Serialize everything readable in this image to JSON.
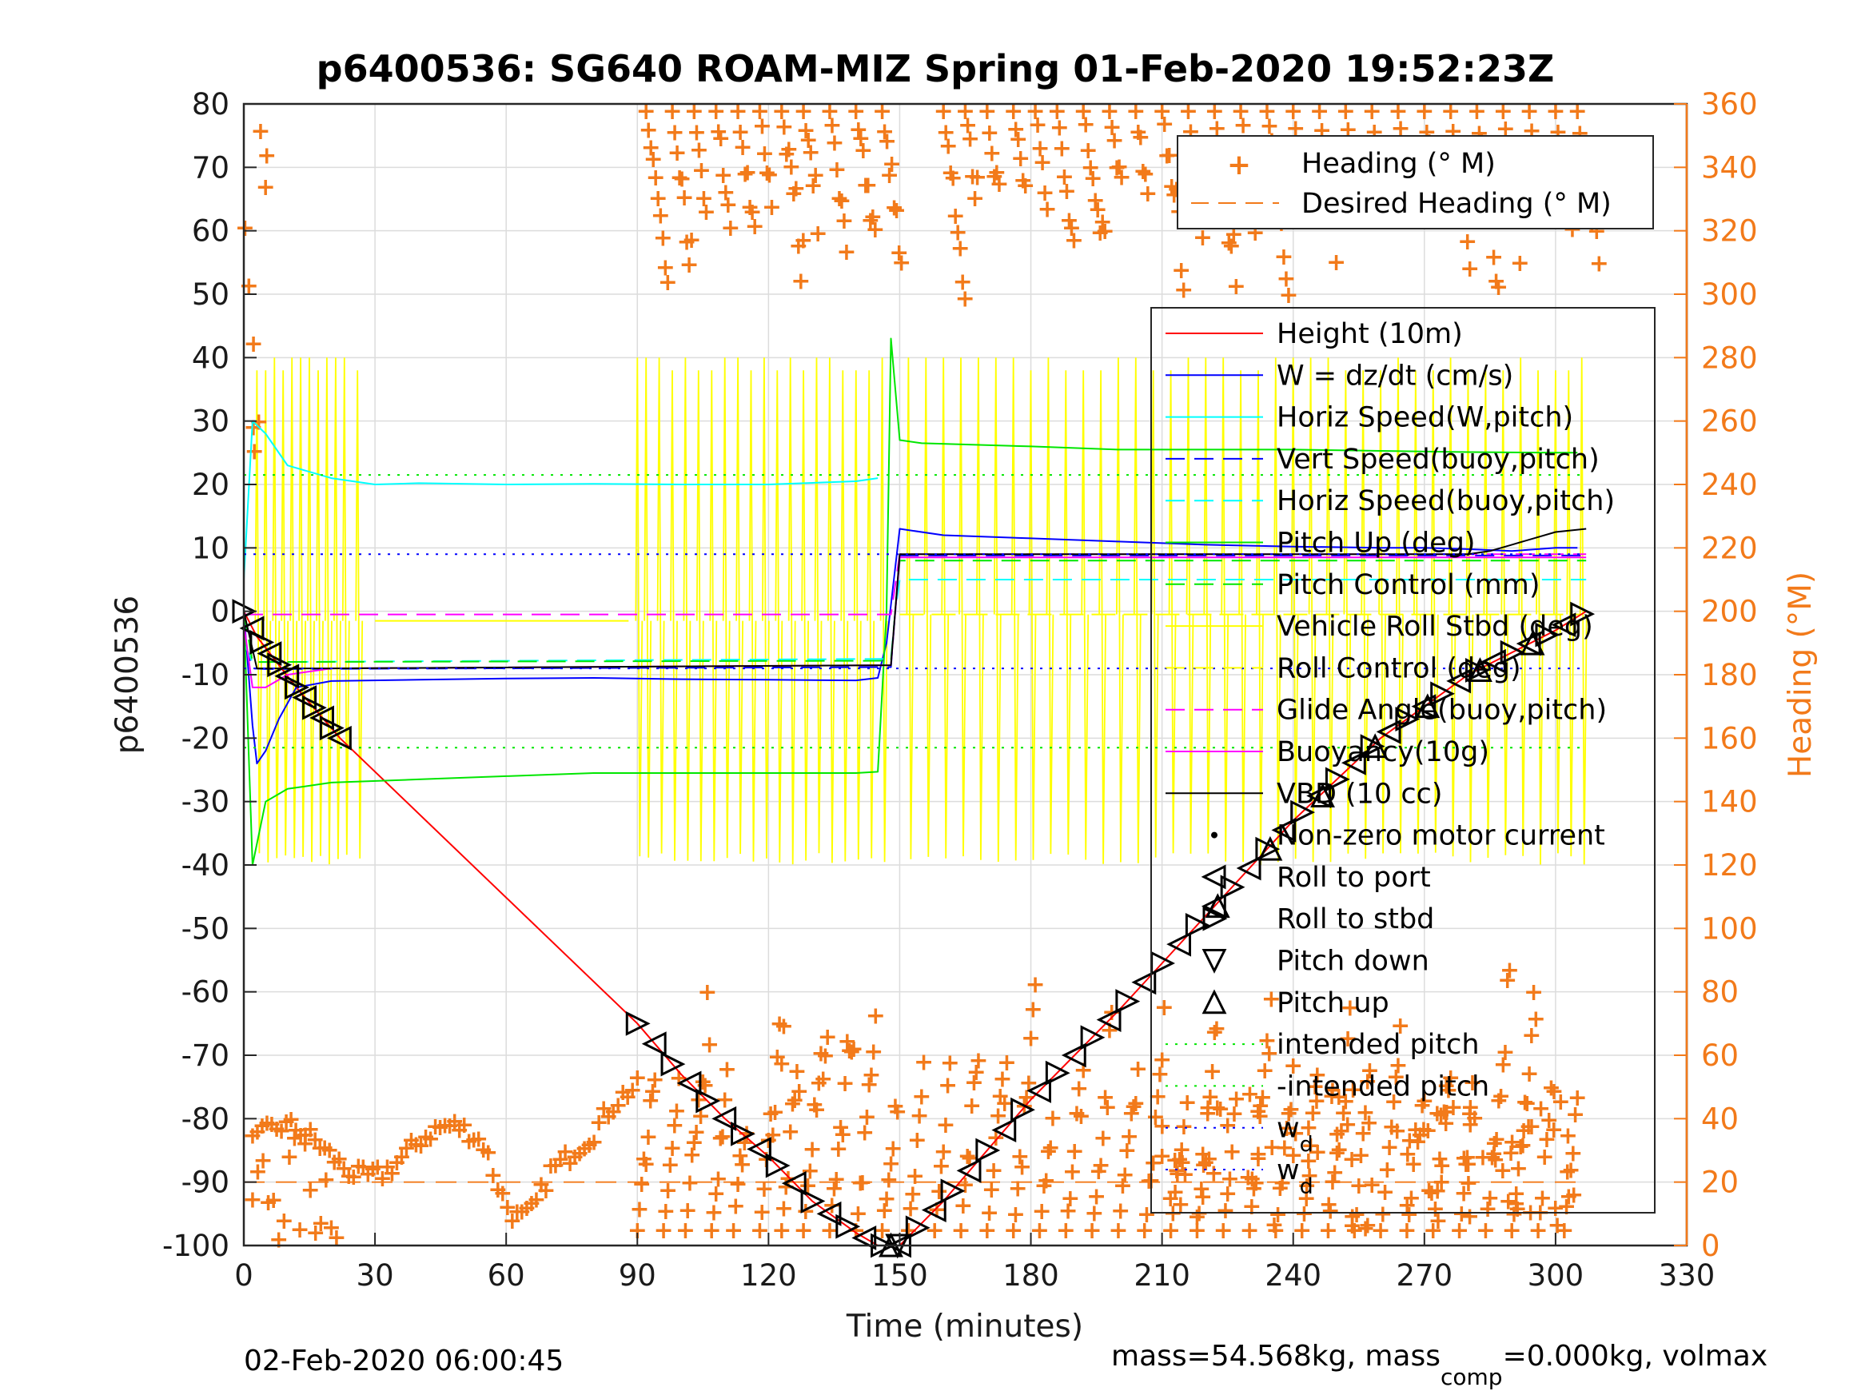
{
  "chart_data": {
    "type": "line",
    "title": "p6400536: SG640 ROAM-MIZ Spring 01-Feb-2020 19:52:23Z",
    "xlabel": "Time (minutes)",
    "ylabel": "p6400536",
    "ylabel_right": "Heading (°M)",
    "xlim": [
      0,
      330
    ],
    "ylim": [
      -100,
      80
    ],
    "ylim_right": [
      0,
      360
    ],
    "xticks": [
      0,
      30,
      60,
      90,
      120,
      150,
      180,
      210,
      240,
      270,
      300,
      330
    ],
    "yticks": [
      -100,
      -90,
      -80,
      -70,
      -60,
      -50,
      -40,
      -30,
      -20,
      -10,
      0,
      10,
      20,
      30,
      40,
      50,
      60,
      70,
      80
    ],
    "yticks_right": [
      0,
      20,
      40,
      60,
      80,
      100,
      120,
      140,
      160,
      180,
      200,
      220,
      240,
      260,
      280,
      300,
      320,
      340,
      360
    ],
    "grid": true,
    "legend_heading": {
      "placement": "top-right",
      "entries": [
        "Heading (° M)",
        "Desired Heading (° M)"
      ]
    },
    "legend_main": {
      "placement": "right",
      "entries": [
        "Height (10m)",
        "W = dz/dt (cm/s)",
        "Horiz Speed(W,pitch)",
        "Vert Speed(buoy,pitch)",
        "Horiz Speed(buoy,pitch)",
        "Pitch Up (deg)",
        "Pitch Control (mm)",
        "Vehicle Roll Stbd (deg)",
        "Roll Control (deg)",
        "Glide Angle(buoy,pitch)",
        "Buoyancy(10g)",
        "VBD (10 cc)",
        "Non-zero motor current",
        "Roll to port",
        "Roll to stbd",
        "Pitch down",
        "Pitch up",
        "intended pitch",
        "-intended pitch",
        "w",
        "w"
      ],
      "subscript": "d"
    },
    "colors": {
      "heading": "#f27a1a",
      "height": "#ff0000",
      "w": "#0000ff",
      "horiz_speed": "#00ffff",
      "pitch": "#00e600",
      "roll": "#ffff00",
      "glide": "#ff00ff",
      "vbd": "#000000"
    },
    "series": [
      {
        "name": "Height (10m)",
        "x": [
          0,
          3,
          12,
          22,
          90,
          100,
          110,
          120,
          130,
          140,
          145,
          148,
          150,
          160,
          180,
          200,
          220,
          240,
          260,
          280,
          300,
          307
        ],
        "y": [
          0,
          -4,
          -12,
          -20,
          -65,
          -73,
          -80,
          -86,
          -93,
          -98,
          -100,
          -100,
          -100,
          -93,
          -77,
          -63,
          -48,
          -33,
          -20,
          -10,
          -3,
          0
        ]
      },
      {
        "name": "W = dz/dt (cm/s)",
        "x": [
          0,
          2,
          3,
          5,
          8,
          12,
          20,
          40,
          60,
          80,
          100,
          120,
          140,
          145,
          147,
          150,
          160,
          180,
          200,
          220,
          240,
          260,
          270,
          280,
          290,
          300,
          305
        ],
        "y": [
          0,
          -18,
          -24,
          -22,
          -17,
          -12,
          -11,
          -10.8,
          -10.6,
          -10.5,
          -10.7,
          -10.8,
          -10.9,
          -10.5,
          -5,
          13,
          12,
          11.5,
          11,
          10.5,
          10.2,
          10,
          10,
          9.8,
          9.5,
          10,
          10
        ]
      },
      {
        "name": "Horiz Speed(W,pitch)",
        "x": [
          0,
          2,
          5,
          10,
          20,
          30,
          40,
          60,
          80,
          100,
          120,
          140,
          145
        ],
        "y": [
          5,
          30,
          28,
          23,
          21,
          20,
          20.2,
          20,
          20.1,
          20,
          20,
          20.5,
          21
        ]
      },
      {
        "name": "Vert Speed(buoy,pitch)",
        "x": [
          0,
          2,
          5,
          148,
          149,
          150,
          307
        ],
        "y": [
          -5,
          -9,
          -9.1,
          -8.8,
          0,
          8.8,
          8.8
        ]
      },
      {
        "name": "Horiz Speed(buoy,pitch)",
        "x": [
          0,
          2,
          5,
          148,
          149,
          150,
          307
        ],
        "y": [
          -5,
          -8,
          -8,
          -7.5,
          0,
          5,
          5
        ]
      },
      {
        "name": "Pitch Up (deg)",
        "x": [
          0,
          2,
          5,
          10,
          20,
          40,
          60,
          80,
          100,
          120,
          140,
          145,
          147,
          148,
          150,
          155,
          180,
          200,
          220,
          240,
          260,
          280,
          300,
          305
        ],
        "y": [
          0,
          -40,
          -30,
          -28,
          -27,
          -26.5,
          -26,
          -25.5,
          -25.5,
          -25.5,
          -25.5,
          -25.3,
          0,
          43,
          27,
          26.5,
          26,
          25.5,
          25.5,
          25.5,
          25.3,
          25.1,
          25,
          25
        ]
      },
      {
        "name": "Pitch Control (mm)",
        "x": [
          0,
          2,
          148,
          150,
          307
        ],
        "y": [
          0,
          -8,
          -7.8,
          8,
          8
        ]
      },
      {
        "name": "Glide Angle(buoy,pitch)",
        "x": [
          0,
          148,
          150,
          307
        ],
        "y": [
          -0.5,
          -0.5,
          9,
          9
        ]
      },
      {
        "name": "Buoyancy(10g)",
        "x": [
          0,
          2,
          5,
          10,
          20,
          148,
          150,
          307
        ],
        "y": [
          -2,
          -12,
          -12,
          -10,
          -9,
          -8.5,
          8.5,
          8.5
        ]
      },
      {
        "name": "VBD (10 cc)",
        "x": [
          0,
          3,
          10,
          20,
          148,
          150,
          280,
          285,
          290,
          295,
          300,
          307
        ],
        "y": [
          0,
          -9,
          -9,
          -9,
          -8.5,
          9,
          9,
          9.5,
          10.5,
          11.5,
          12.5,
          13
        ]
      },
      {
        "name": "intended pitch",
        "x": [
          0,
          307
        ],
        "y": [
          21.5,
          21.5
        ]
      },
      {
        "name": "-intended pitch",
        "x": [
          0,
          307
        ],
        "y": [
          -21.5,
          -21.5
        ]
      },
      {
        "name": "w",
        "x": [
          0,
          307
        ],
        "y": [
          9,
          9
        ]
      },
      {
        "name": "w",
        "x": [
          0,
          307
        ],
        "y": [
          -9,
          -9
        ]
      },
      {
        "name": "Desired Heading (° M)",
        "axis": "right",
        "x": [
          0,
          307
        ],
        "y": [
          20,
          20
        ]
      }
    ],
    "annotations": [
      "02-Feb-2020 06:00:45"
    ],
    "footer_right": {
      "prefix": "mass=54.568kg, mass",
      "subscript": "comp",
      "suffix": "=0.000kg, volmax"
    }
  }
}
